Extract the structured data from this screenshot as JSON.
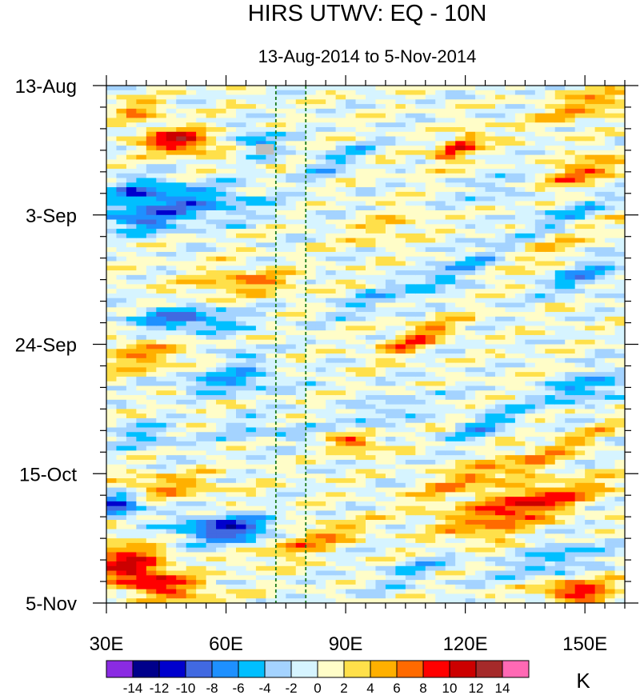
{
  "chart_data": {
    "type": "heatmap",
    "title": "HIRS UTWV: EQ - 10N",
    "subtitle": "13-Aug-2014 to 5-Nov-2014",
    "x_axis": {
      "range": [
        30,
        160
      ],
      "ticks": [
        30,
        60,
        90,
        120,
        150
      ],
      "tick_labels": [
        "30E",
        "60E",
        "90E",
        "120E",
        "150E"
      ]
    },
    "y_axis": {
      "range_days": [
        0,
        84
      ],
      "ticks_days": [
        0,
        21,
        42,
        63,
        84
      ],
      "tick_labels": [
        "13-Aug",
        "3-Sep",
        "24-Sep",
        "15-Oct",
        "5-Nov"
      ]
    },
    "reference_lines_lon": [
      72.5,
      80
    ],
    "colorbar": {
      "label": "K",
      "levels": [
        -14,
        -12,
        -10,
        -8,
        -6,
        -4,
        -2,
        0,
        2,
        4,
        6,
        8,
        10,
        12,
        14
      ],
      "level_labels": [
        "-14",
        "-12",
        "-10",
        "-8",
        "-6",
        "-4",
        "-2",
        "0",
        "2",
        "4",
        "6",
        "8",
        "10",
        "12",
        "14"
      ],
      "colors": [
        "#8a2be2",
        "#00008b",
        "#0000cd",
        "#4169e1",
        "#1e90ff",
        "#00bfff",
        "#a4d3ff",
        "#d6f4ff",
        "#fffdc8",
        "#ffe04a",
        "#ffb000",
        "#ff6a00",
        "#ff0000",
        "#cc0000",
        "#a52a2a",
        "#ff69b4"
      ]
    },
    "missing_color": "#bebebe",
    "missing_region": {
      "lon": [
        67.5,
        72
      ],
      "days": [
        9.5,
        11.2
      ]
    },
    "features": [
      {
        "lon": 48,
        "day": 9,
        "value": 11,
        "slope": 0,
        "w": 9,
        "h": 2
      },
      {
        "lon": 38,
        "day": 4,
        "value": 5,
        "slope": 0,
        "w": 6,
        "h": 2
      },
      {
        "lon": 118,
        "day": 10,
        "value": 11,
        "slope": -0.3,
        "w": 6,
        "h": 1.6
      },
      {
        "lon": 152,
        "day": 3,
        "value": 7,
        "slope": -0.2,
        "w": 12,
        "h": 1.8
      },
      {
        "lon": 148,
        "day": 14,
        "value": 10,
        "slope": -0.2,
        "w": 10,
        "h": 1.8
      },
      {
        "lon": 132,
        "day": 16,
        "value": -4,
        "slope": -0.2,
        "w": 14,
        "h": 1.8
      },
      {
        "lon": 50,
        "day": 19,
        "value": -7,
        "slope": 0,
        "w": 18,
        "h": 3
      },
      {
        "lon": 38,
        "day": 17,
        "value": -5,
        "slope": 0,
        "w": 8,
        "h": 2
      },
      {
        "lon": 145,
        "day": 21,
        "value": -5,
        "slope": -0.25,
        "w": 12,
        "h": 2
      },
      {
        "lon": 68,
        "day": 9,
        "value": -6,
        "slope": 0,
        "w": 6,
        "h": 2
      },
      {
        "lon": 140,
        "day": 26,
        "value": 5,
        "slope": -0.3,
        "w": 14,
        "h": 1.6
      },
      {
        "lon": 118,
        "day": 30,
        "value": -7,
        "slope": -0.3,
        "w": 14,
        "h": 1.8
      },
      {
        "lon": 150,
        "day": 31,
        "value": -6,
        "slope": -0.2,
        "w": 10,
        "h": 2
      },
      {
        "lon": 65,
        "day": 32,
        "value": 6,
        "slope": 0,
        "w": 14,
        "h": 2
      },
      {
        "lon": 50,
        "day": 38,
        "value": -8,
        "slope": 0,
        "w": 14,
        "h": 2
      },
      {
        "lon": 40,
        "day": 44,
        "value": 5,
        "slope": 0,
        "w": 12,
        "h": 3
      },
      {
        "lon": 60,
        "day": 48,
        "value": -6,
        "slope": 0,
        "w": 14,
        "h": 2
      },
      {
        "lon": 63,
        "day": 44,
        "value": -4,
        "slope": 0,
        "w": 6,
        "h": 2
      },
      {
        "lon": 108,
        "day": 41,
        "value": 7,
        "slope": -0.25,
        "w": 10,
        "h": 2
      },
      {
        "lon": 150,
        "day": 49,
        "value": -7,
        "slope": -0.2,
        "w": 10,
        "h": 2
      },
      {
        "lon": 92,
        "day": 58,
        "value": 8,
        "slope": 0,
        "w": 6,
        "h": 1.6
      },
      {
        "lon": 140,
        "day": 60,
        "value": 6,
        "slope": -0.3,
        "w": 16,
        "h": 1.6
      },
      {
        "lon": 135,
        "day": 68,
        "value": 10,
        "slope": -0.15,
        "w": 18,
        "h": 2.5
      },
      {
        "lon": 120,
        "day": 64,
        "value": 7,
        "slope": -0.3,
        "w": 12,
        "h": 1.6
      },
      {
        "lon": 33,
        "day": 68,
        "value": -10,
        "slope": 0,
        "w": 6,
        "h": 2
      },
      {
        "lon": 60,
        "day": 72,
        "value": -11,
        "slope": 0,
        "w": 12,
        "h": 2.2
      },
      {
        "lon": 45,
        "day": 65,
        "value": 5,
        "slope": 0,
        "w": 14,
        "h": 2
      },
      {
        "lon": 80,
        "day": 74,
        "value": 7,
        "slope": -0.2,
        "w": 12,
        "h": 2
      },
      {
        "lon": 40,
        "day": 80,
        "value": 10,
        "slope": 0.15,
        "w": 14,
        "h": 3
      },
      {
        "lon": 36,
        "day": 76,
        "value": 6,
        "slope": 0,
        "w": 8,
        "h": 2
      },
      {
        "lon": 148,
        "day": 82,
        "value": 10,
        "slope": 0,
        "w": 10,
        "h": 1.6
      },
      {
        "lon": 142,
        "day": 77,
        "value": -6,
        "slope": -0.2,
        "w": 12,
        "h": 2
      },
      {
        "lon": 110,
        "day": 78,
        "value": -4,
        "slope": -0.2,
        "w": 12,
        "h": 2
      },
      {
        "lon": 125,
        "day": 73,
        "value": 4,
        "slope": -0.2,
        "w": 12,
        "h": 2
      },
      {
        "lon": 100,
        "day": 53,
        "value": -4,
        "slope": -0.25,
        "w": 12,
        "h": 2
      },
      {
        "lon": 125,
        "day": 55,
        "value": -5,
        "slope": -0.2,
        "w": 10,
        "h": 2
      },
      {
        "lon": 100,
        "day": 23,
        "value": 4,
        "slope": -0.25,
        "w": 10,
        "h": 2
      },
      {
        "lon": 88,
        "day": 12,
        "value": -4,
        "slope": -0.25,
        "w": 10,
        "h": 2
      },
      {
        "lon": 38,
        "day": 22,
        "value": -6,
        "slope": 0,
        "w": 10,
        "h": 2
      },
      {
        "lon": 95,
        "day": 35,
        "value": -3,
        "slope": -0.2,
        "w": 10,
        "h": 2
      },
      {
        "lon": 70,
        "day": 56,
        "value": -3,
        "slope": 0,
        "w": 12,
        "h": 2
      },
      {
        "lon": 40,
        "day": 57,
        "value": -4,
        "slope": 0,
        "w": 10,
        "h": 2
      }
    ]
  }
}
